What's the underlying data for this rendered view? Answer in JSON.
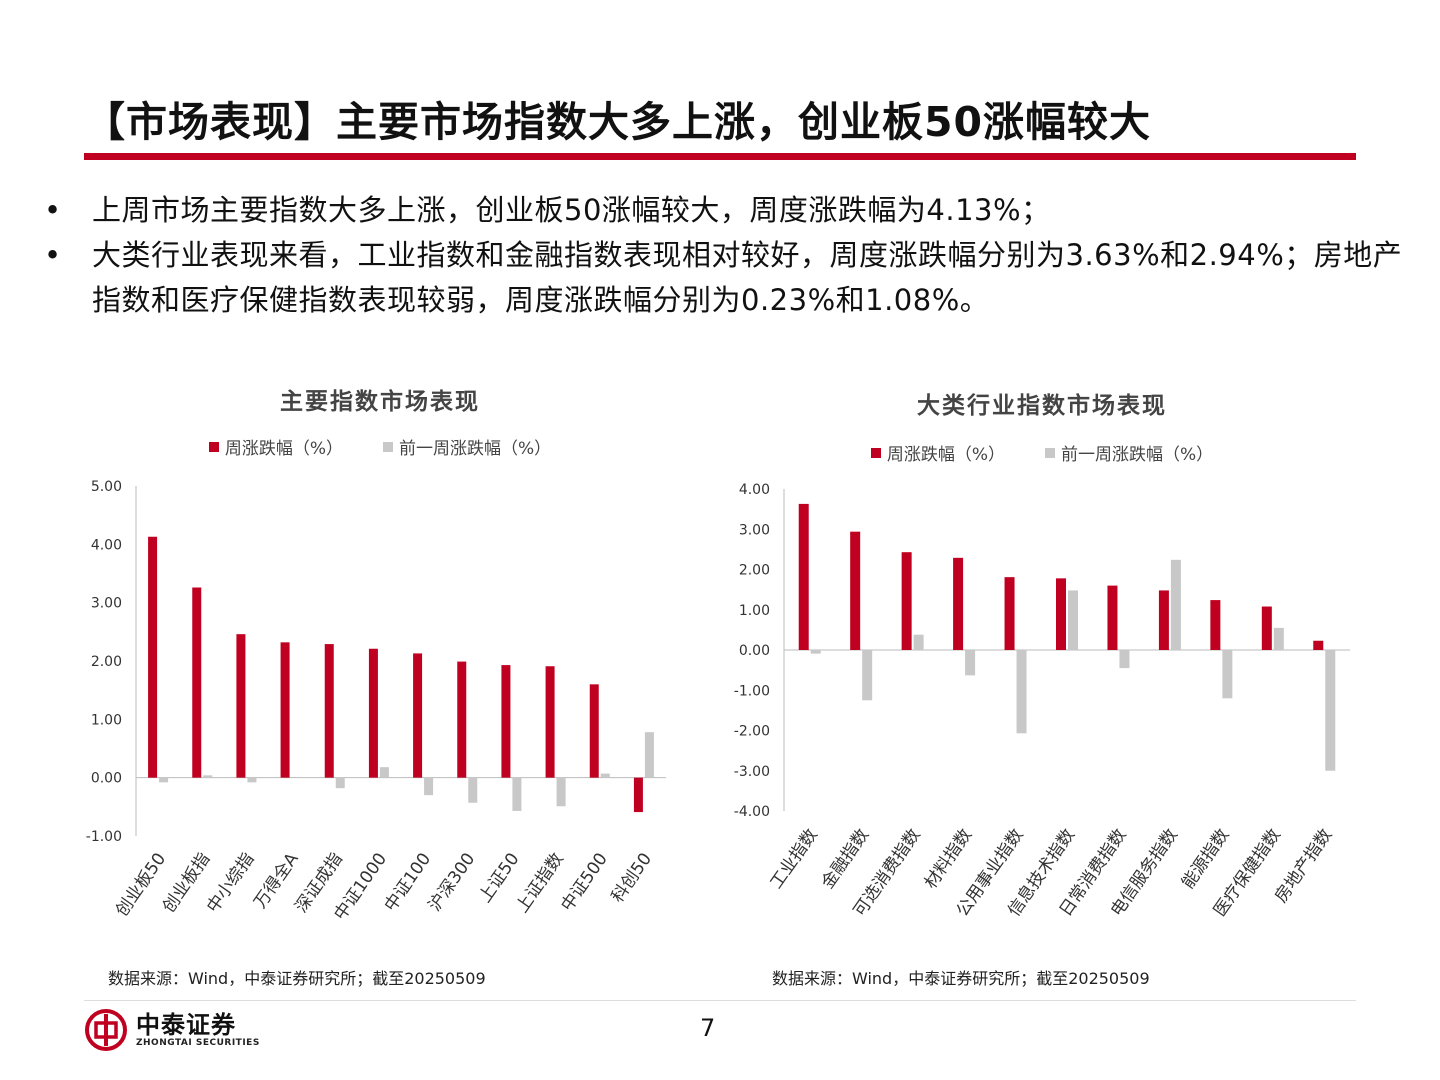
{
  "page": {
    "title": "【市场表现】主要市场指数大多上涨，创业板50涨幅较大",
    "bullets": [
      "上周市场主要指数大多上涨，创业板50涨幅较大，周度涨跌幅为4.13%；",
      "大类行业表现来看，工业指数和金融指数表现相对较好，周度涨跌幅分别为3.63%和2.94%；房地产指数和医疗保健指数表现较弱，周度涨跌幅分别为0.23%和1.08%。"
    ],
    "page_number": "7",
    "logo": {
      "cn": "中泰证券",
      "en": "ZHONGTAI SECURITIES"
    },
    "colors": {
      "accent": "#c00020",
      "bar_current": "#c00020",
      "bar_previous": "#c8c8c8"
    }
  },
  "chart_data": [
    {
      "type": "bar",
      "title": "主要指数市场表现",
      "legend_placement": "top",
      "source": "数据来源：Wind，中泰证券研究所；截至20250509",
      "categories": [
        "创业板50",
        "创业板指",
        "中小综指",
        "万得全A",
        "深证成指",
        "中证1000",
        "中证100",
        "沪深300",
        "上证50",
        "上证指数",
        "中证500",
        "科创50"
      ],
      "series": [
        {
          "name": "周涨跌幅（%）",
          "values": [
            4.13,
            3.26,
            2.46,
            2.32,
            2.29,
            2.21,
            2.13,
            1.99,
            1.93,
            1.91,
            1.6,
            -0.59
          ]
        },
        {
          "name": "前一周涨跌幅（%）",
          "values": [
            -0.08,
            0.04,
            -0.08,
            0.0,
            -0.18,
            0.18,
            -0.3,
            -0.43,
            -0.57,
            -0.49,
            0.07,
            0.78
          ]
        }
      ],
      "ylim": [
        -1,
        5
      ],
      "yticks": [
        "5.00",
        "4.00",
        "3.00",
        "2.00",
        "1.00",
        "0.00",
        "-1.00"
      ],
      "ytick_values": [
        5,
        4,
        3,
        2,
        1,
        0,
        -1
      ],
      "grid": false
    },
    {
      "type": "bar",
      "title": "大类行业指数市场表现",
      "legend_placement": "top",
      "source": "数据来源：Wind，中泰证券研究所；截至20250509",
      "categories": [
        "工业指数",
        "金融指数",
        "可选消费指数",
        "材料指数",
        "公用事业指数",
        "信息技术指数",
        "日常消费指数",
        "电信服务指数",
        "能源指数",
        "医疗保健指数",
        "房地产指数"
      ],
      "series": [
        {
          "name": "周涨跌幅（%）",
          "values": [
            3.63,
            2.94,
            2.43,
            2.29,
            1.81,
            1.78,
            1.6,
            1.48,
            1.24,
            1.08,
            0.23
          ]
        },
        {
          "name": "前一周涨跌幅（%）",
          "values": [
            -0.09,
            -1.25,
            0.38,
            -0.63,
            -2.07,
            1.48,
            -0.45,
            2.24,
            -1.2,
            0.55,
            -3.0
          ]
        }
      ],
      "ylim": [
        -4,
        4
      ],
      "yticks": [
        "4.00",
        "3.00",
        "2.00",
        "1.00",
        "0.00",
        "-1.00",
        "-2.00",
        "-3.00",
        "-4.00"
      ],
      "ytick_values": [
        4,
        3,
        2,
        1,
        0,
        -1,
        -2,
        -3,
        -4
      ],
      "grid": false
    }
  ]
}
